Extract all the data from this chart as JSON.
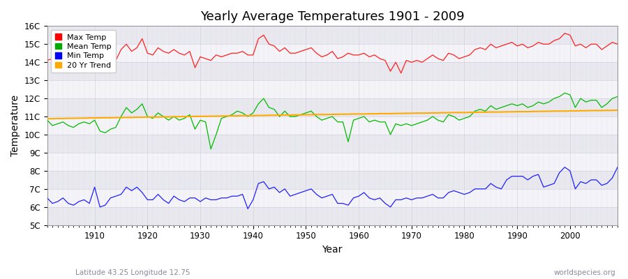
{
  "title": "Yearly Average Temperatures 1901 - 2009",
  "xlabel": "Year",
  "ylabel": "Temperature",
  "bottom_left": "Latitude 43.25 Longitude 12.75",
  "bottom_right": "worldspecies.org",
  "ylim": [
    5,
    16
  ],
  "yticks": [
    5,
    6,
    7,
    8,
    9,
    10,
    11,
    12,
    13,
    14,
    15,
    16
  ],
  "ytick_labels": [
    "5C",
    "6C",
    "7C",
    "8C",
    "9C",
    "10C",
    "11C",
    "12C",
    "13C",
    "14C",
    "15C",
    "16C"
  ],
  "xlim": [
    1901,
    2009
  ],
  "xticks": [
    1910,
    1920,
    1930,
    1940,
    1950,
    1960,
    1970,
    1980,
    1990,
    2000
  ],
  "bg_color": "#ffffff",
  "plot_bg_color": "#f0f0f5",
  "legend_labels": [
    "Max Temp",
    "Mean Temp",
    "Min Temp",
    "20 Yr Trend"
  ],
  "legend_colors": [
    "#ff0000",
    "#00aa00",
    "#0000ff",
    "#ffaa00"
  ],
  "band_colors": [
    "#e8e8ee",
    "#f4f4f8"
  ],
  "max_temp": [
    14.1,
    14.2,
    14.3,
    14.1,
    14.0,
    14.2,
    14.3,
    14.1,
    14.0,
    14.9,
    14.1,
    13.9,
    14.0,
    14.1,
    14.7,
    15.0,
    14.6,
    14.8,
    15.3,
    14.5,
    14.4,
    14.8,
    14.6,
    14.5,
    14.7,
    14.5,
    14.4,
    14.6,
    13.7,
    14.3,
    14.2,
    14.1,
    14.4,
    14.3,
    14.4,
    14.5,
    14.5,
    14.6,
    14.4,
    14.4,
    15.3,
    15.5,
    15.0,
    14.9,
    14.6,
    14.8,
    14.5,
    14.5,
    14.6,
    14.7,
    14.8,
    14.5,
    14.3,
    14.4,
    14.6,
    14.2,
    14.3,
    14.5,
    14.4,
    14.4,
    14.5,
    14.3,
    14.4,
    14.2,
    14.1,
    13.5,
    14.0,
    13.4,
    14.1,
    14.0,
    14.1,
    14.0,
    14.2,
    14.4,
    14.2,
    14.1,
    14.5,
    14.4,
    14.2,
    14.3,
    14.4,
    14.7,
    14.8,
    14.7,
    15.0,
    14.8,
    14.9,
    15.0,
    15.1,
    14.9,
    15.0,
    14.8,
    14.9,
    15.1,
    15.0,
    15.0,
    15.2,
    15.3,
    15.6,
    15.5,
    14.9,
    15.0,
    14.8,
    15.0,
    15.0,
    14.7,
    14.9,
    15.1,
    15.0
  ],
  "mean_temp": [
    10.8,
    10.5,
    10.6,
    10.7,
    10.5,
    10.4,
    10.6,
    10.7,
    10.6,
    10.8,
    10.2,
    10.1,
    10.3,
    10.4,
    11.0,
    11.5,
    11.2,
    11.4,
    11.7,
    11.0,
    10.9,
    11.2,
    11.0,
    10.8,
    11.0,
    10.8,
    10.9,
    11.1,
    10.3,
    10.8,
    10.7,
    9.2,
    10.0,
    10.9,
    11.0,
    11.1,
    11.3,
    11.2,
    11.0,
    11.2,
    11.7,
    12.0,
    11.5,
    11.4,
    11.0,
    11.3,
    11.0,
    11.0,
    11.1,
    11.2,
    11.3,
    11.0,
    10.8,
    10.9,
    11.0,
    10.7,
    10.7,
    9.6,
    10.8,
    10.9,
    11.0,
    10.7,
    10.8,
    10.7,
    10.7,
    10.0,
    10.6,
    10.5,
    10.6,
    10.5,
    10.6,
    10.7,
    10.8,
    11.0,
    10.8,
    10.7,
    11.1,
    11.0,
    10.8,
    10.9,
    11.0,
    11.3,
    11.4,
    11.3,
    11.6,
    11.4,
    11.5,
    11.6,
    11.7,
    11.6,
    11.7,
    11.5,
    11.6,
    11.8,
    11.7,
    11.8,
    12.0,
    12.1,
    12.3,
    12.2,
    11.5,
    12.0,
    11.8,
    11.9,
    11.9,
    11.5,
    11.7,
    12.0,
    12.1
  ],
  "min_temp": [
    6.5,
    6.2,
    6.3,
    6.5,
    6.2,
    6.1,
    6.3,
    6.4,
    6.2,
    7.1,
    6.0,
    6.1,
    6.5,
    6.6,
    6.7,
    7.1,
    6.9,
    7.1,
    6.8,
    6.4,
    6.4,
    6.7,
    6.4,
    6.2,
    6.6,
    6.4,
    6.3,
    6.5,
    6.5,
    6.3,
    6.5,
    6.4,
    6.4,
    6.5,
    6.5,
    6.6,
    6.6,
    6.7,
    5.9,
    6.4,
    7.3,
    7.4,
    7.0,
    7.1,
    6.8,
    7.0,
    6.6,
    6.7,
    6.8,
    6.9,
    7.0,
    6.7,
    6.5,
    6.6,
    6.7,
    6.2,
    6.2,
    6.1,
    6.5,
    6.6,
    6.8,
    6.5,
    6.4,
    6.5,
    6.2,
    6.0,
    6.4,
    6.4,
    6.5,
    6.4,
    6.5,
    6.5,
    6.6,
    6.7,
    6.5,
    6.5,
    6.8,
    6.9,
    6.8,
    6.7,
    6.8,
    7.0,
    7.0,
    7.0,
    7.3,
    7.1,
    7.0,
    7.5,
    7.7,
    7.7,
    7.7,
    7.5,
    7.7,
    7.8,
    7.1,
    7.2,
    7.3,
    7.9,
    8.2,
    8.0,
    7.0,
    7.4,
    7.3,
    7.5,
    7.5,
    7.2,
    7.3,
    7.6,
    8.2
  ],
  "trend_start_year": 1901,
  "trend_values": [
    10.88,
    10.88,
    10.89,
    10.89,
    10.9,
    10.9,
    10.91,
    10.91,
    10.92,
    10.92,
    10.93,
    10.93,
    10.93,
    10.94,
    10.94,
    10.95,
    10.95,
    10.96,
    10.96,
    10.97,
    10.97,
    10.97,
    10.98,
    10.98,
    10.99,
    10.99,
    11.0,
    11.0,
    11.01,
    11.01,
    11.01,
    11.02,
    11.02,
    11.03,
    11.03,
    11.04,
    11.04,
    11.05,
    11.05,
    11.05,
    11.06,
    11.06,
    11.07,
    11.07,
    11.08,
    11.08,
    11.08,
    11.09,
    11.09,
    11.1,
    11.1,
    11.11,
    11.11,
    11.11,
    11.12,
    11.12,
    11.13,
    11.13,
    11.14,
    11.14,
    11.14,
    11.15,
    11.15,
    11.16,
    11.16,
    11.16,
    11.17,
    11.17,
    11.18,
    11.18,
    11.19,
    11.19,
    11.19,
    11.2,
    11.2,
    11.21,
    11.21,
    11.22,
    11.22,
    11.22,
    11.23,
    11.23,
    11.24,
    11.24,
    11.25,
    11.25,
    11.25,
    11.26,
    11.26,
    11.27,
    11.27,
    11.27,
    11.28,
    11.28,
    11.29,
    11.29,
    11.3,
    11.3,
    11.3,
    11.31,
    11.31,
    11.32,
    11.32,
    11.33,
    11.33,
    11.33,
    11.34,
    11.34,
    11.35
  ]
}
